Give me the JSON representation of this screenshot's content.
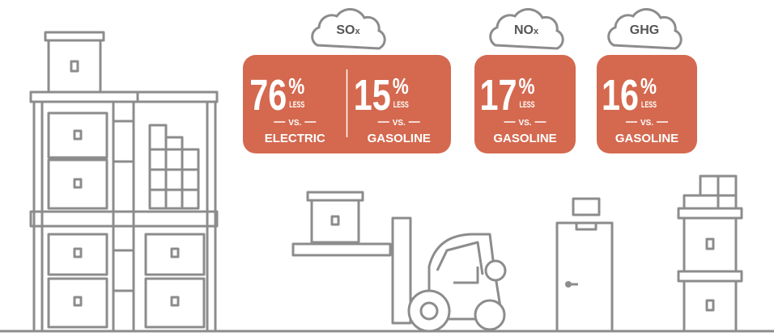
{
  "panels": [
    {
      "pollutant": {
        "main": "SO",
        "sub": "x"
      },
      "stats": [
        {
          "value": 76,
          "unit": "%",
          "less": "LESS",
          "vs": "VS.",
          "against": "ELECTRIC"
        },
        {
          "value": 15,
          "unit": "%",
          "less": "LESS",
          "vs": "VS.",
          "against": "GASOLINE"
        }
      ]
    },
    {
      "pollutant": {
        "main": "NO",
        "sub": "x"
      },
      "stats": [
        {
          "value": 17,
          "unit": "%",
          "less": "LESS",
          "vs": "VS.",
          "against": "GASOLINE"
        }
      ]
    },
    {
      "pollutant": {
        "main": "GHG"
      },
      "stats": [
        {
          "value": 16,
          "unit": "%",
          "less": "LESS",
          "vs": "VS.",
          "against": "GASOLINE"
        }
      ]
    }
  ]
}
